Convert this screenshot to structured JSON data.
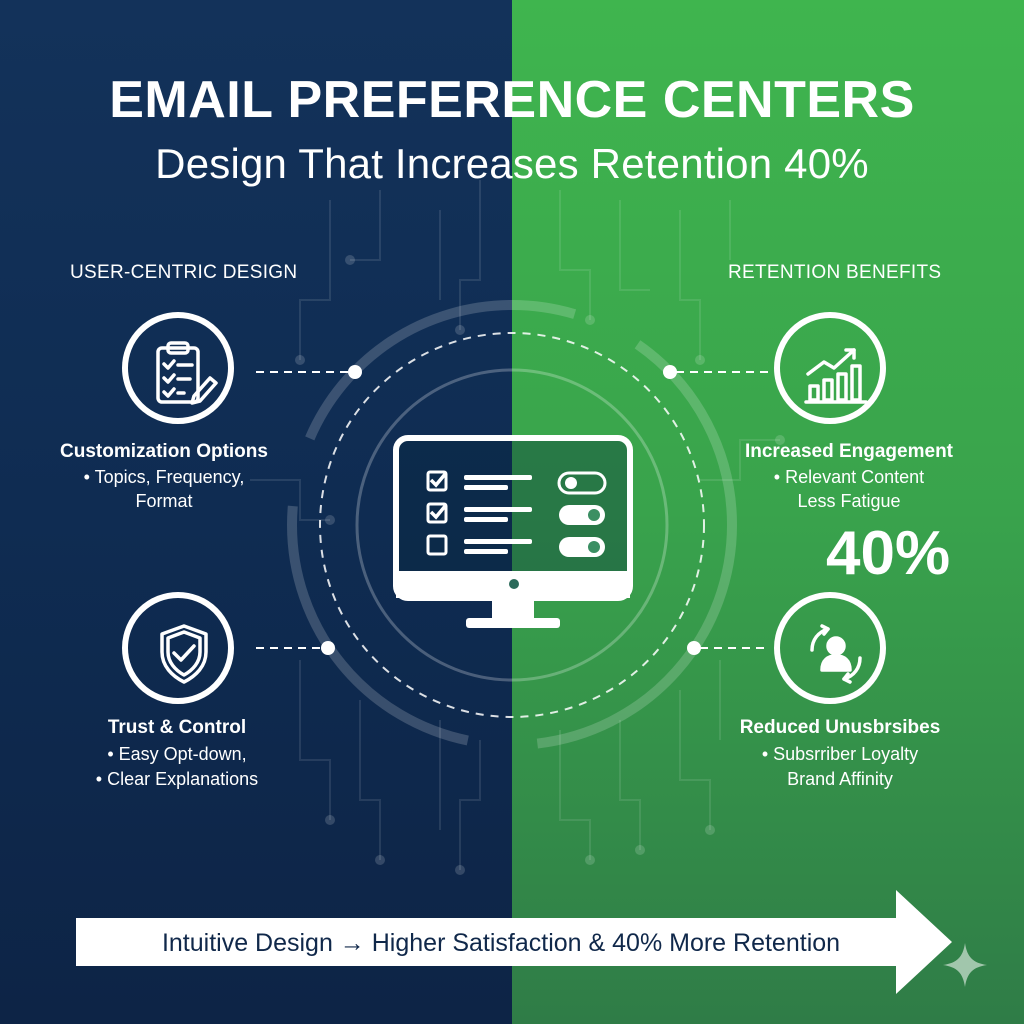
{
  "title": "EMAIL PREFERENCE CENTERS",
  "subtitle": "Design That Increases Retention 40%",
  "left_section": {
    "label": "USER-CENTRIC DESIGN",
    "features": [
      {
        "title": "Customization Options",
        "lines": [
          "• Topics, Frequency,",
          "Format"
        ],
        "icon": "clipboard-checklist-icon"
      },
      {
        "title": "Trust & Control",
        "lines": [
          "• Easy Opt-down,",
          "• Clear Explanations"
        ],
        "icon": "shield-check-icon"
      }
    ]
  },
  "right_section": {
    "label": "RETENTION BENEFITS",
    "features": [
      {
        "title": "Increased Engagement",
        "lines": [
          "• Relevant Content",
          "Less Fatigue"
        ],
        "icon": "growth-chart-icon"
      },
      {
        "title": "Reduced Unusbrsibes",
        "lines": [
          "• Subsrriber Loyalty",
          "Brand Affinity"
        ],
        "icon": "user-cycle-icon"
      }
    ],
    "stat": "40%"
  },
  "center_icon": "monitor-preferences-icon",
  "banner_text": "Intuitive Design → Higher Satisfaction & 40% More Retention",
  "colors": {
    "left_bg": "#13325a",
    "right_bg": "#3fb54e",
    "text": "#ffffff",
    "banner_text": "#10284a"
  }
}
